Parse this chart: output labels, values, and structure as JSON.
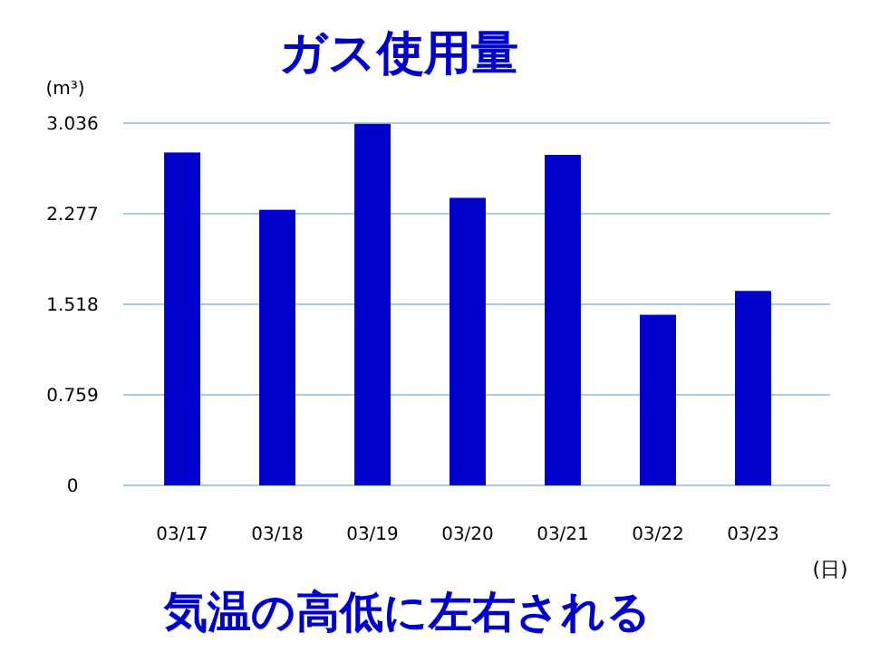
{
  "chart_data": {
    "type": "bar",
    "title": "ガス使用量",
    "ylabel": "(m³)",
    "xlabel": "(日)",
    "categories": [
      "03/17",
      "03/18",
      "03/19",
      "03/20",
      "03/21",
      "03/22",
      "03/23"
    ],
    "values": [
      2.79,
      2.31,
      3.03,
      2.41,
      2.77,
      1.43,
      1.63
    ],
    "color": "#0000cc",
    "ylim": [
      0,
      3.036
    ],
    "yticks": [
      0,
      0.759,
      1.518,
      2.277,
      3.036
    ],
    "grid": "y",
    "annotations": [
      "気温の高低に左右される"
    ]
  }
}
